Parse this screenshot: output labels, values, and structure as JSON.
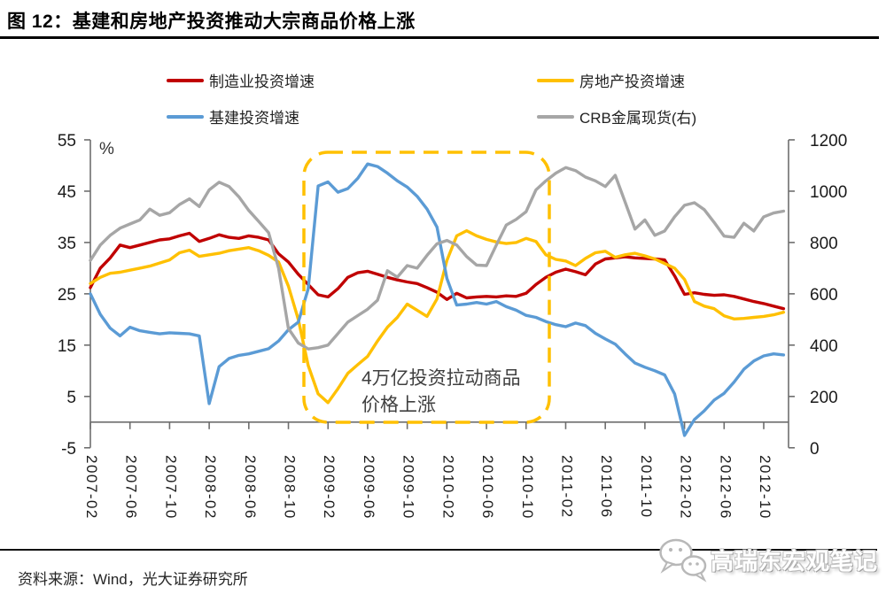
{
  "figure": {
    "title": "图 12：基建和房地产投资推动大宗商品价格上涨",
    "source": "资料来源：Wind，光大证券研究所",
    "watermark": "高瑞东宏观笔记"
  },
  "legend": [
    {
      "key": "manufacturing",
      "label": "制造业投资增速",
      "color": "#C00000"
    },
    {
      "key": "real-estate",
      "label": "房地产投资增速",
      "color": "#FFC000"
    },
    {
      "key": "infrastructure",
      "label": "基建投资增速",
      "color": "#5B9BD5"
    },
    {
      "key": "crb-metals",
      "label": "CRB金属现货(右)",
      "color": "#A6A6A6"
    }
  ],
  "annotation": {
    "line1": "4万亿投资拉动商品",
    "line2": "价格上涨",
    "box_color": "#FFC000"
  },
  "chart_data": {
    "type": "line",
    "unit_label": "%",
    "frequency": "monthly",
    "x_start": "2007-02",
    "x_end": "2012-12",
    "x_tick_labels": [
      "2007-02",
      "2007-06",
      "2007-10",
      "2008-02",
      "2008-06",
      "2008-10",
      "2009-02",
      "2009-06",
      "2009-10",
      "2010-02",
      "2010-06",
      "2010-10",
      "2011-02",
      "2011-06",
      "2011-10",
      "2012-02",
      "2012-06",
      "2012-10"
    ],
    "y_axis_left": {
      "min": -5,
      "max": 55,
      "ticks": [
        55,
        45,
        35,
        25,
        15,
        5,
        -5
      ]
    },
    "y_axis_right": {
      "min": 0,
      "max": 1200,
      "ticks": [
        1200,
        1000,
        800,
        600,
        400,
        200,
        0
      ]
    },
    "grid": false,
    "legend_position": "top",
    "series": [
      {
        "key": "manufacturing",
        "name": "制造业投资增速",
        "axis": "left",
        "color": "#C00000",
        "values": [
          26.2,
          30,
          32,
          34.5,
          34,
          34.5,
          35,
          35.5,
          35.7,
          36.3,
          36.8,
          35.2,
          35.8,
          36.5,
          36,
          35.8,
          36.3,
          36,
          35.5,
          32.8,
          31.2,
          28.8,
          26.8,
          24.8,
          24.4,
          26,
          28.2,
          29.1,
          29.4,
          28.8,
          28.2,
          27.7,
          27.3,
          27,
          26.2,
          25.3,
          23.9,
          25.1,
          24.2,
          24.4,
          24.5,
          24.4,
          24.6,
          24.5,
          25.1,
          26.8,
          28.2,
          29.2,
          29.8,
          29.3,
          28.7,
          30.8,
          31.8,
          32,
          32.2,
          32,
          31.9,
          31.8,
          31.6,
          28.5,
          24.9,
          25.2,
          24.9,
          24.7,
          24.8,
          24.5,
          24,
          23.5,
          23.1,
          22.6,
          22.1
        ]
      },
      {
        "key": "real-estate",
        "name": "房地产投资增速",
        "axis": "left",
        "color": "#FFC000",
        "values": [
          27,
          28.2,
          29,
          29.2,
          29.6,
          30,
          30.4,
          31,
          31.6,
          33,
          33.5,
          32.3,
          32.6,
          32.9,
          33.4,
          33.7,
          34,
          33.4,
          32.5,
          31.2,
          26.5,
          20,
          11,
          5.5,
          3.8,
          6.5,
          9.5,
          11.2,
          12.8,
          15.8,
          18.5,
          20.4,
          23,
          21.8,
          20.6,
          24,
          31.5,
          36.3,
          37.3,
          36.3,
          35.6,
          35.1,
          34.8,
          35,
          35.8,
          35.2,
          32.6,
          31.7,
          31.4,
          30.5,
          31.9,
          33,
          33.3,
          32.1,
          32.6,
          32.9,
          32.4,
          31.8,
          30.9,
          30,
          27.8,
          23.5,
          22.6,
          22.1,
          20.7,
          20.1,
          20.2,
          20.4,
          20.6,
          20.9,
          21.4
        ]
      },
      {
        "key": "infrastructure",
        "name": "基建投资增速",
        "axis": "left",
        "color": "#5B9BD5",
        "values": [
          25,
          21,
          18.3,
          16.8,
          18.5,
          17.8,
          17.5,
          17.2,
          17.4,
          17.3,
          17.2,
          16.8,
          3.6,
          10.8,
          12.4,
          13,
          13.3,
          13.8,
          14.3,
          15.8,
          18,
          19.5,
          26,
          46,
          46.8,
          44.8,
          45.5,
          47.5,
          50.3,
          49.8,
          48.5,
          47,
          45.8,
          44,
          41.5,
          38,
          28,
          22.8,
          23,
          23.3,
          23,
          23.5,
          22.5,
          21.8,
          20.8,
          20.4,
          19.6,
          19,
          18.6,
          19.3,
          18.8,
          17.3,
          16.2,
          15.2,
          13.3,
          11.5,
          10.7,
          10,
          9.2,
          5.5,
          -2.6,
          0.5,
          2.2,
          4.3,
          5.6,
          7.8,
          10.3,
          11.9,
          12.9,
          13.3,
          13.1
        ]
      },
      {
        "key": "crb-metals",
        "name": "CRB金属现货(右)",
        "axis": "right",
        "color": "#A6A6A6",
        "values": [
          730,
          790,
          828,
          856,
          872,
          888,
          930,
          906,
          916,
          948,
          970,
          940,
          1005,
          1035,
          1018,
          978,
          925,
          882,
          838,
          700,
          465,
          408,
          385,
          390,
          400,
          445,
          490,
          515,
          540,
          575,
          690,
          665,
          710,
          700,
          750,
          795,
          808,
          790,
          745,
          712,
          710,
          790,
          868,
          890,
          920,
          1005,
          1040,
          1070,
          1092,
          1080,
          1055,
          1040,
          1018,
          1062,
          958,
          852,
          888,
          828,
          845,
          900,
          945,
          955,
          928,
          878,
          825,
          820,
          875,
          845,
          900,
          915,
          922
        ]
      }
    ]
  }
}
